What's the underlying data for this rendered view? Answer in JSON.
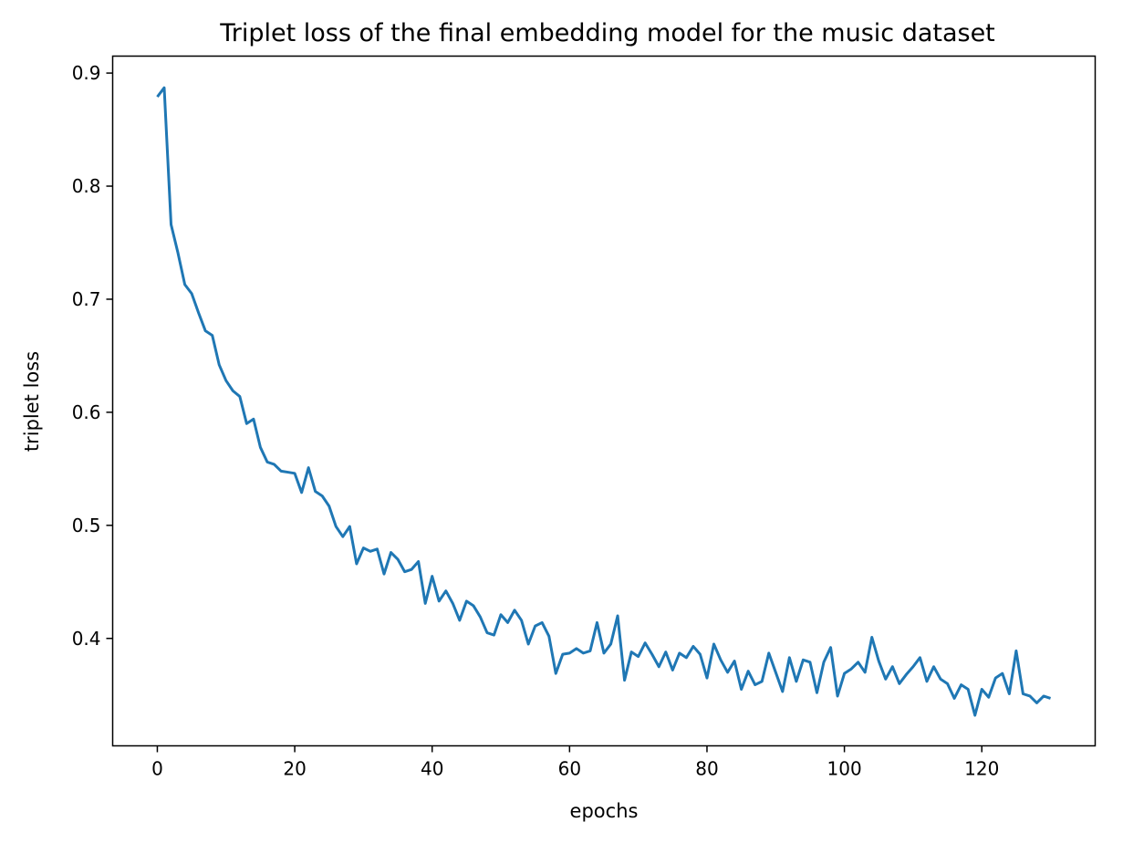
{
  "chart_data": {
    "type": "line",
    "title": "Triplet loss of the final embedding model for the music dataset",
    "xlabel": "epochs",
    "ylabel": "triplet loss",
    "xlim": [
      -6.5,
      136.5
    ],
    "ylim": [
      0.305,
      0.915
    ],
    "xticks": [
      0,
      20,
      40,
      60,
      80,
      100,
      120
    ],
    "yticks": [
      0.4,
      0.5,
      0.6,
      0.7,
      0.8,
      0.9
    ],
    "xtick_labels": [
      "0",
      "20",
      "40",
      "60",
      "80",
      "100",
      "120"
    ],
    "ytick_labels": [
      "0.4",
      "0.5",
      "0.6",
      "0.7",
      "0.8",
      "0.9"
    ],
    "grid": false,
    "legend": "none",
    "line_color": "#1f77b4",
    "series": [
      {
        "values": [
          0.879,
          0.887,
          0.766,
          0.741,
          0.713,
          0.705,
          0.688,
          0.672,
          0.668,
          0.642,
          0.628,
          0.619,
          0.614,
          0.59,
          0.594,
          0.569,
          0.556,
          0.554,
          0.548,
          0.547,
          0.546,
          0.529,
          0.551,
          0.53,
          0.526,
          0.517,
          0.499,
          0.49,
          0.499,
          0.466,
          0.48,
          0.477,
          0.479,
          0.457,
          0.476,
          0.47,
          0.459,
          0.461,
          0.468,
          0.431,
          0.455,
          0.433,
          0.442,
          0.431,
          0.416,
          0.433,
          0.429,
          0.419,
          0.405,
          0.403,
          0.421,
          0.414,
          0.425,
          0.416,
          0.395,
          0.411,
          0.414,
          0.402,
          0.369,
          0.386,
          0.387,
          0.391,
          0.387,
          0.389,
          0.414,
          0.387,
          0.395,
          0.42,
          0.363,
          0.388,
          0.384,
          0.396,
          0.386,
          0.375,
          0.388,
          0.372,
          0.387,
          0.383,
          0.393,
          0.386,
          0.365,
          0.395,
          0.381,
          0.37,
          0.38,
          0.355,
          0.371,
          0.359,
          0.362,
          0.387,
          0.37,
          0.353,
          0.383,
          0.362,
          0.381,
          0.379,
          0.352,
          0.379,
          0.392,
          0.349,
          0.369,
          0.373,
          0.379,
          0.37,
          0.401,
          0.38,
          0.364,
          0.375,
          0.36,
          0.368,
          0.375,
          0.383,
          0.362,
          0.375,
          0.364,
          0.36,
          0.347,
          0.359,
          0.355,
          0.332,
          0.355,
          0.348,
          0.365,
          0.369,
          0.351,
          0.389,
          0.351,
          0.349,
          0.343,
          0.349,
          0.347
        ]
      }
    ]
  }
}
